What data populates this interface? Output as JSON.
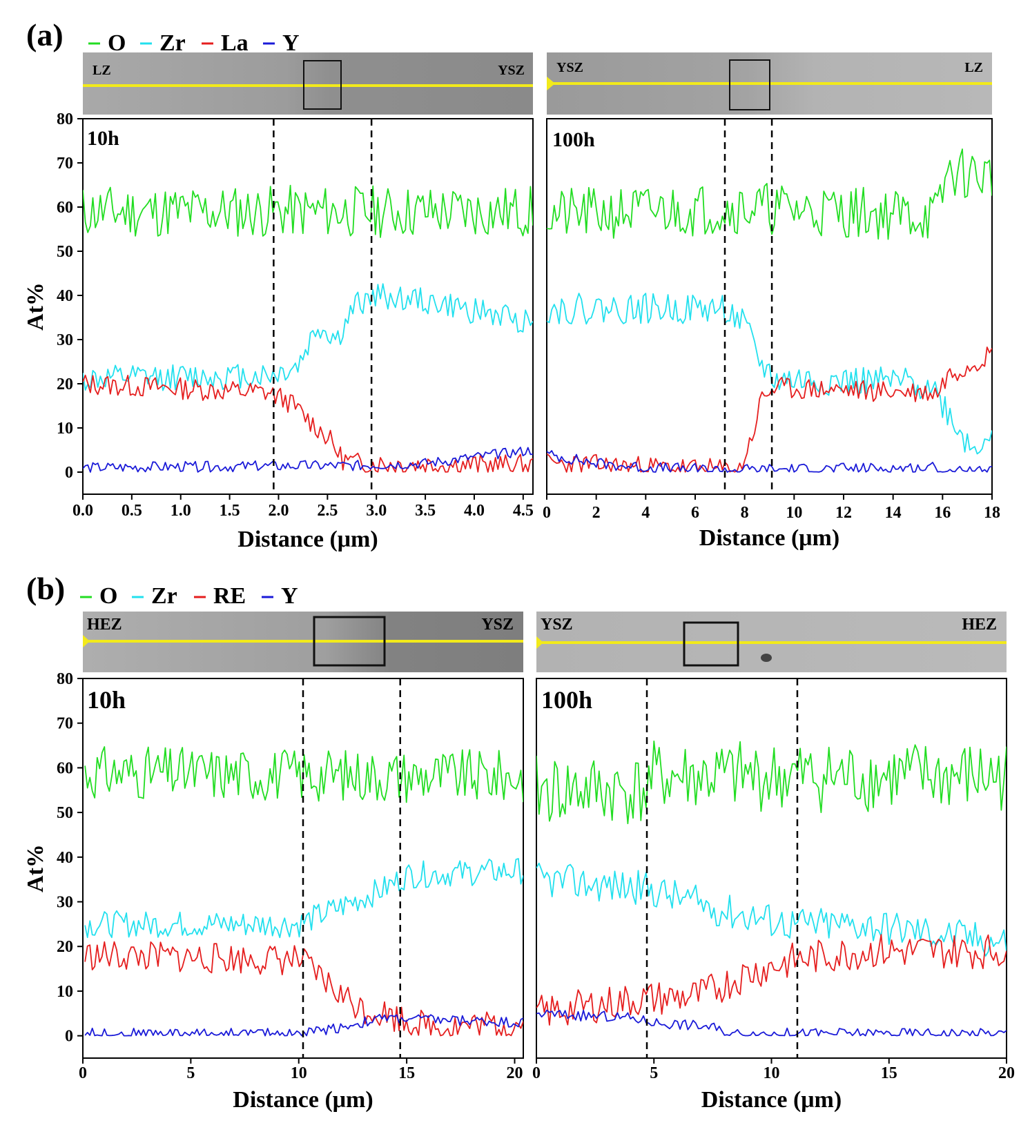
{
  "colors": {
    "O": "#22dd22",
    "Zr": "#22e0ee",
    "La": "#e51e1e",
    "RE": "#e51e1e",
    "Y": "#1a1ad8"
  },
  "chart_data": [
    {
      "type": "line",
      "panel": "(a)",
      "legend": [
        {
          "key": "O",
          "label": "O"
        },
        {
          "key": "Zr",
          "label": "Zr"
        },
        {
          "key": "La",
          "label": "La"
        },
        {
          "key": "Y",
          "label": "Y"
        }
      ],
      "image_labels": [
        "LZ",
        "YSZ"
      ],
      "annotation": "10h",
      "xlabel": "Distance (μm)",
      "ylabel": "At%",
      "xlim": [
        0,
        4.6
      ],
      "ylim": [
        -5,
        80
      ],
      "xticks": [
        0,
        0.5,
        1,
        1.5,
        2,
        2.5,
        3,
        3.5,
        4,
        4.5
      ],
      "xtick_labels": [
        "0.0",
        "0.5",
        "1.0",
        "1.5",
        "2.0",
        "2.5",
        "3.0",
        "3.5",
        "4.0",
        "4.5"
      ],
      "yticks": [
        0,
        10,
        20,
        30,
        40,
        50,
        60,
        70,
        80
      ],
      "ytick_labels": [
        "0",
        "10",
        "20",
        "30",
        "40",
        "50",
        "60",
        "70",
        "80"
      ],
      "vlines": [
        1.95,
        2.95
      ],
      "series": [
        {
          "name": "O",
          "key": "O",
          "profile": [
            [
              0,
              59
            ],
            [
              4.6,
              59
            ]
          ],
          "noise": 6,
          "seed": 11
        },
        {
          "name": "Zr",
          "key": "Zr",
          "profile": [
            [
              0,
              21
            ],
            [
              1.95,
              22
            ],
            [
              2.2,
              24
            ],
            [
              2.4,
              33
            ],
            [
              2.6,
              30
            ],
            [
              2.8,
              38
            ],
            [
              3.0,
              40
            ],
            [
              3.4,
              39
            ],
            [
              4.6,
              34
            ]
          ],
          "noise": 3,
          "seed": 12
        },
        {
          "name": "La",
          "key": "La",
          "profile": [
            [
              0,
              20
            ],
            [
              1.9,
              18
            ],
            [
              2.1,
              16
            ],
            [
              2.3,
              12
            ],
            [
              2.5,
              8
            ],
            [
              2.65,
              3
            ],
            [
              2.8,
              2
            ],
            [
              4.6,
              1.5
            ]
          ],
          "noise": 2.5,
          "seed": 13
        },
        {
          "name": "Y",
          "key": "Y",
          "profile": [
            [
              0,
              1
            ],
            [
              2.8,
              1.5
            ],
            [
              3.5,
              2
            ],
            [
              4.6,
              5
            ]
          ],
          "noise": 1.2,
          "seed": 14
        }
      ]
    },
    {
      "type": "line",
      "panel": "(a)",
      "image_labels": [
        "YSZ",
        "LZ"
      ],
      "annotation": "100h",
      "xlabel": "Distance (μm)",
      "ylabel": "",
      "xlim": [
        0,
        18
      ],
      "ylim": [
        -5,
        80
      ],
      "xticks": [
        0,
        2,
        4,
        6,
        8,
        10,
        12,
        14,
        16,
        18
      ],
      "xtick_labels": [
        "0",
        "2",
        "4",
        "6",
        "8",
        "10",
        "12",
        "14",
        "16",
        "18"
      ],
      "yticks": [],
      "ytick_labels": [],
      "vlines": [
        7.2,
        9.1
      ],
      "series": [
        {
          "name": "O",
          "key": "O",
          "profile": [
            [
              0,
              58
            ],
            [
              8,
              60
            ],
            [
              15.8,
              58
            ],
            [
              16.2,
              68
            ],
            [
              18,
              67
            ]
          ],
          "noise": 6,
          "seed": 21
        },
        {
          "name": "Zr",
          "key": "Zr",
          "profile": [
            [
              0,
              37
            ],
            [
              7.2,
              37
            ],
            [
              8.0,
              33
            ],
            [
              8.6,
              25
            ],
            [
              9.2,
              21
            ],
            [
              15.5,
              20
            ],
            [
              16.4,
              12
            ],
            [
              17.2,
              5
            ],
            [
              18,
              10
            ]
          ],
          "noise": 3.5,
          "seed": 22
        },
        {
          "name": "La",
          "key": "La",
          "profile": [
            [
              0,
              2
            ],
            [
              7.2,
              0.5
            ],
            [
              7.8,
              0.5
            ],
            [
              8.3,
              8
            ],
            [
              8.7,
              17
            ],
            [
              9.2,
              19
            ],
            [
              15.8,
              18
            ],
            [
              16.2,
              22
            ],
            [
              18,
              27
            ]
          ],
          "noise": 2.5,
          "seed": 23
        },
        {
          "name": "Y",
          "key": "Y",
          "profile": [
            [
              0,
              4
            ],
            [
              2,
              2
            ],
            [
              4,
              1
            ],
            [
              7,
              0.5
            ],
            [
              15.8,
              1
            ],
            [
              16,
              0
            ],
            [
              18,
              0
            ]
          ],
          "noise": 1.3,
          "seed": 24
        }
      ]
    },
    {
      "type": "line",
      "panel": "(b)",
      "legend": [
        {
          "key": "O",
          "label": "O"
        },
        {
          "key": "Zr",
          "label": "Zr"
        },
        {
          "key": "RE",
          "label": "RE"
        },
        {
          "key": "Y",
          "label": "Y"
        }
      ],
      "image_labels": [
        "HEZ",
        "YSZ"
      ],
      "annotation": "10h",
      "xlabel": "Distance (μm)",
      "ylabel": "At%",
      "xlim": [
        0,
        20.4
      ],
      "ylim": [
        -5,
        80
      ],
      "xticks": [
        0,
        5,
        10,
        15,
        20
      ],
      "xtick_labels": [
        "0",
        "5",
        "10",
        "15",
        "20"
      ],
      "yticks": [
        0,
        10,
        20,
        30,
        40,
        50,
        60,
        70,
        80
      ],
      "ytick_labels": [
        "0",
        "10",
        "20",
        "30",
        "40",
        "50",
        "60",
        "70",
        "80"
      ],
      "vlines": [
        10.2,
        14.7
      ],
      "series": [
        {
          "name": "O",
          "key": "O",
          "profile": [
            [
              0.1,
              59
            ],
            [
              20.4,
              58
            ]
          ],
          "noise": 6,
          "seed": 31
        },
        {
          "name": "Zr",
          "key": "Zr",
          "profile": [
            [
              0.1,
              25
            ],
            [
              10,
              25
            ],
            [
              12,
              29
            ],
            [
              14,
              33
            ],
            [
              15,
              36
            ],
            [
              20.4,
              37
            ]
          ],
          "noise": 3,
          "seed": 32
        },
        {
          "name": "RE",
          "key": "RE",
          "profile": [
            [
              0.1,
              18
            ],
            [
              10,
              17
            ],
            [
              11,
              13
            ],
            [
              12,
              9
            ],
            [
              13,
              6
            ],
            [
              14,
              5
            ],
            [
              16,
              2
            ],
            [
              20.4,
              2.5
            ]
          ],
          "noise": 3.5,
          "seed": 33
        },
        {
          "name": "Y",
          "key": "Y",
          "profile": [
            [
              0.1,
              0.5
            ],
            [
              10,
              0.5
            ],
            [
              12,
              2
            ],
            [
              14,
              4
            ],
            [
              20.4,
              3
            ]
          ],
          "noise": 1.2,
          "seed": 34
        }
      ]
    },
    {
      "type": "line",
      "panel": "(b)",
      "image_labels": [
        "YSZ",
        "HEZ"
      ],
      "annotation": "100h",
      "xlabel": "Distance (μm)",
      "ylabel": "",
      "xlim": [
        0,
        20
      ],
      "ylim": [
        -5,
        80
      ],
      "xticks": [
        0,
        5,
        10,
        15,
        20
      ],
      "xtick_labels": [
        "0",
        "5",
        "10",
        "15",
        "20"
      ],
      "yticks": [],
      "ytick_labels": [],
      "vlines": [
        4.7,
        11.1
      ],
      "series": [
        {
          "name": "O",
          "key": "O",
          "profile": [
            [
              0,
              55
            ],
            [
              4.7,
              55
            ],
            [
              5,
              58
            ],
            [
              20,
              58
            ]
          ],
          "noise": 8,
          "seed": 41
        },
        {
          "name": "Zr",
          "key": "Zr",
          "profile": [
            [
              0,
              35
            ],
            [
              4.7,
              33
            ],
            [
              8,
              28
            ],
            [
              11,
              25
            ],
            [
              14,
              25
            ],
            [
              20,
              21
            ]
          ],
          "noise": 4,
          "seed": 42
        },
        {
          "name": "RE",
          "key": "RE",
          "profile": [
            [
              0,
              5
            ],
            [
              4,
              8
            ],
            [
              7,
              9
            ],
            [
              9,
              14
            ],
            [
              11,
              17
            ],
            [
              14,
              19
            ],
            [
              20,
              19
            ]
          ],
          "noise": 4,
          "seed": 43
        },
        {
          "name": "Y",
          "key": "Y",
          "profile": [
            [
              0,
              5
            ],
            [
              4,
              4
            ],
            [
              5,
              3
            ],
            [
              7.5,
              2
            ],
            [
              8,
              0.5
            ],
            [
              20,
              0.5
            ]
          ],
          "noise": 1.2,
          "seed": 44
        }
      ]
    }
  ]
}
